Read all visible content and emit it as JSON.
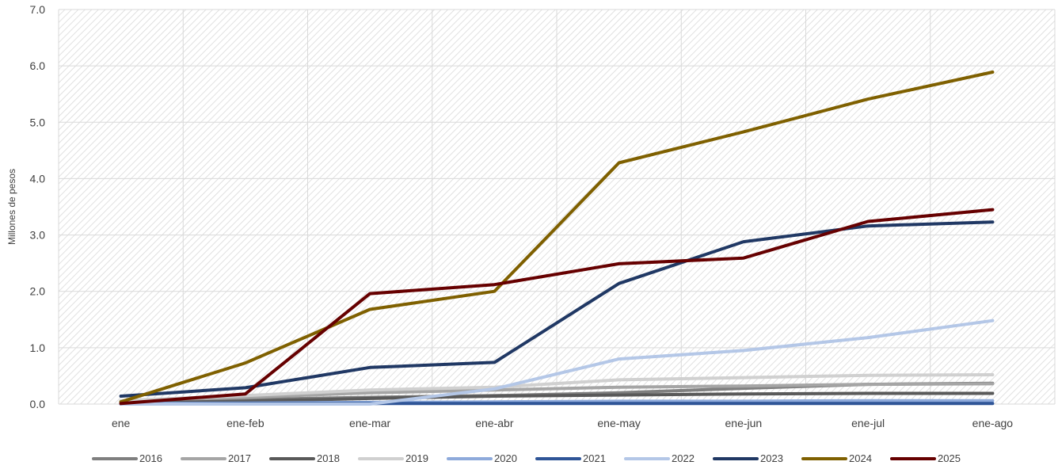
{
  "chart_data": {
    "type": "line",
    "title": "",
    "xlabel": "",
    "ylabel": "Millones de pesos",
    "ylim": [
      0,
      7
    ],
    "yticks": [
      "0.0",
      "1.0",
      "2.0",
      "3.0",
      "4.0",
      "5.0",
      "6.0",
      "7.0"
    ],
    "categories": [
      "ene",
      "ene-feb",
      "ene-mar",
      "ene-abr",
      "ene-may",
      "ene-jun",
      "ene-jul",
      "ene-ago"
    ],
    "grid": true,
    "legend_position": "bottom",
    "series": [
      {
        "name": "2016",
        "color": "#7f7f7f",
        "values": [
          0.04,
          0.08,
          0.12,
          0.15,
          0.2,
          0.28,
          0.35,
          0.37
        ]
      },
      {
        "name": "2017",
        "color": "#a5a5a5",
        "values": [
          0.05,
          0.12,
          0.2,
          0.25,
          0.3,
          0.32,
          0.35,
          0.36
        ]
      },
      {
        "name": "2018",
        "color": "#595959",
        "values": [
          0.02,
          0.05,
          0.1,
          0.14,
          0.16,
          0.18,
          0.19,
          0.19
        ]
      },
      {
        "name": "2019",
        "color": "#d0d0d0",
        "values": [
          0.06,
          0.15,
          0.25,
          0.3,
          0.43,
          0.47,
          0.51,
          0.52
        ]
      },
      {
        "name": "2020",
        "color": "#8eaadb",
        "values": [
          0.01,
          0.02,
          0.03,
          0.04,
          0.05,
          0.05,
          0.06,
          0.06
        ]
      },
      {
        "name": "2021",
        "color": "#2f5597",
        "values": [
          0.0,
          0.01,
          0.01,
          0.01,
          0.01,
          0.01,
          0.01,
          0.01
        ]
      },
      {
        "name": "2022",
        "color": "#b4c7e7",
        "values": [
          0.0,
          0.0,
          0.0,
          0.27,
          0.8,
          0.95,
          1.18,
          1.48
        ]
      },
      {
        "name": "2023",
        "color": "#203864",
        "values": [
          0.14,
          0.29,
          0.65,
          0.74,
          2.14,
          2.88,
          3.16,
          3.23
        ]
      },
      {
        "name": "2024",
        "color": "#7f6000",
        "values": [
          0.04,
          0.73,
          1.68,
          2.0,
          4.28,
          4.83,
          5.41,
          5.89
        ]
      },
      {
        "name": "2025",
        "color": "#660000",
        "values": [
          0.01,
          0.18,
          1.96,
          2.12,
          2.49,
          2.59,
          3.24,
          3.45
        ]
      }
    ]
  }
}
